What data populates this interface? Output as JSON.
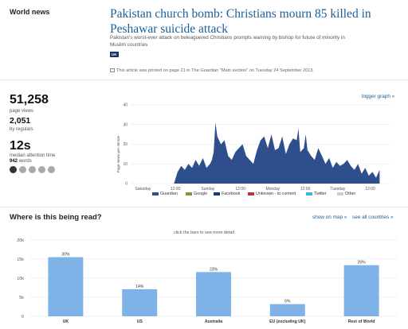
{
  "article": {
    "section": "World news",
    "headline": "Pakistan church bomb: Christians mourn 85 killed in Peshawar suicide attack",
    "standfirst": "Pakistan's worst-ever attack on beleaguered Christians prompts warning by bishop for future of minority in Muslim countries",
    "tag": "UK",
    "print_info": "This article was printed on page 21 in The Guardian \"Main section\" on Tuesday 24 September 2013."
  },
  "stats": {
    "page_views": "51,258",
    "page_views_label": "page views",
    "regulars": "2,051",
    "regulars_label": "by regulars",
    "attention": "12s",
    "attention_label": "median attention time",
    "words_value": "942",
    "words_label": "words"
  },
  "clocks": [
    {
      "fill": "#333333",
      "icon": "clock-icon"
    },
    {
      "fill": "#aaaaaa",
      "icon": "clock-icon"
    },
    {
      "fill": "#aaaaaa",
      "icon": "clock-icon"
    },
    {
      "fill": "#aaaaaa",
      "icon": "clock-icon"
    },
    {
      "fill": "#aaaaaa",
      "icon": "clock-icon"
    }
  ],
  "links": {
    "bigger_graph": "bigger graph »",
    "show_on_map": "show on map »",
    "see_all_countries": "see all countries »"
  },
  "geo": {
    "title": "Where is this being read?",
    "hint": "click the bars to see more detail"
  },
  "chart_data": [
    {
      "type": "area",
      "ylabel": "Page views per minute",
      "ylim": [
        0,
        40
      ],
      "yticks": [
        "0",
        "10",
        "20",
        "30",
        "40"
      ],
      "xticks": [
        "Saturday",
        "12:00",
        "Sunday",
        "12:00",
        "Monday",
        "12:00",
        "Tuesday",
        "12:00"
      ],
      "x_hours": [
        0,
        10,
        20,
        24,
        26,
        28,
        30,
        32,
        34,
        36,
        38,
        40,
        42,
        44,
        45,
        46,
        47,
        48,
        50,
        52,
        54,
        56,
        58,
        60,
        62,
        64,
        66,
        68,
        70,
        72,
        74,
        76,
        78,
        80,
        82,
        84,
        86,
        88,
        90,
        92,
        93,
        94,
        96,
        97,
        98,
        100,
        102,
        104,
        106,
        108,
        110,
        112,
        114,
        116,
        118,
        120,
        122,
        124,
        126,
        128,
        130,
        132,
        134,
        136,
        138
      ],
      "series": [
        {
          "name": "Guardian",
          "color": "#2e4f8c",
          "values": [
            0,
            0,
            0,
            0,
            6,
            9,
            7,
            10,
            8,
            12,
            9,
            13,
            8,
            10,
            12,
            16,
            31,
            24,
            20,
            22,
            14,
            12,
            16,
            18,
            20,
            14,
            12,
            10,
            17,
            22,
            24,
            18,
            25,
            17,
            18,
            24,
            15,
            20,
            23,
            22,
            28,
            16,
            18,
            25,
            17,
            14,
            12,
            18,
            14,
            10,
            13,
            8,
            11,
            9,
            10,
            12,
            9,
            7,
            10,
            5,
            8,
            4,
            6,
            3,
            7
          ]
        },
        {
          "name": "Google",
          "color": "#7a9a2e",
          "values": []
        },
        {
          "name": "Facebook",
          "color": "#1c3a72",
          "values": []
        },
        {
          "name": "Unknown - to content",
          "color": "#b83240",
          "values": []
        },
        {
          "name": "Twitter",
          "color": "#39b4e6",
          "values": []
        },
        {
          "name": "Other",
          "color": "#cccccc",
          "values": []
        }
      ]
    },
    {
      "type": "bar",
      "ylim": [
        0,
        20000
      ],
      "yticks": [
        "0",
        "5k",
        "10k",
        "15k",
        "20k"
      ],
      "categories": [
        "UK",
        "US",
        "Australia",
        "EU (excluding UK)",
        "Rest of World"
      ],
      "values": [
        15500,
        7100,
        11600,
        3200,
        13400
      ],
      "labels": [
        "30%",
        "14%",
        "23%",
        "6%",
        "26%"
      ],
      "color": "#7fb3e8"
    }
  ]
}
